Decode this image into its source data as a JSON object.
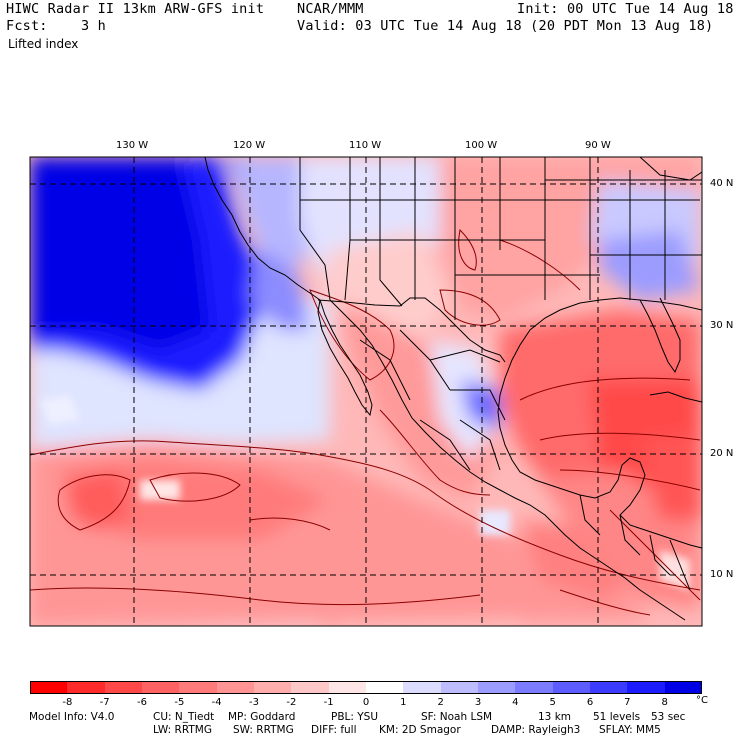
{
  "header": {
    "left_line1": "HIWC Radar II 13km ARW-GFS init",
    "center_line1": "NCAR/MMM",
    "right_line1": "Init: 00 UTC Tue 14 Aug 18",
    "left_line2": "Fcst:    3 h",
    "right_line2": "Valid: 03 UTC Tue 14 Aug 18 (20 PDT Mon 13 Aug 18)",
    "field_name": "Lifted index"
  },
  "map": {
    "longitude_labels": [
      "130 W",
      "120 W",
      "110 W",
      "100 W",
      "90 W"
    ],
    "latitude_labels": [
      "40 N",
      "30 N",
      "20 N",
      "10 N"
    ]
  },
  "colorbar": {
    "tick_labels": [
      "-8",
      "-7",
      "-6",
      "-5",
      "-4",
      "-3",
      "-2",
      "-1",
      "0",
      "1",
      "2",
      "3",
      "4",
      "5",
      "6",
      "7",
      "8"
    ],
    "unit": "°C",
    "colors": [
      "#ff0000",
      "#ff2a2a",
      "#ff4848",
      "#ff6262",
      "#ff7b7b",
      "#ff9494",
      "#ffadad",
      "#ffc8c8",
      "#ffe6e6",
      "#ffffff",
      "#dcdcff",
      "#bcbcff",
      "#9c9cff",
      "#7c7cff",
      "#5c5cff",
      "#3c3cff",
      "#1c1cff",
      "#0000e6"
    ]
  },
  "footer": {
    "line1_model": "Model Info: V4.0",
    "line1_cu": "CU: N_Tiedt",
    "line1_mp": "MP: Goddard",
    "line1_pbl": "PBL: YSU",
    "line1_sf": "SF: Noah LSM",
    "line1_res": "13 km",
    "line1_levels": "51 levels",
    "line1_dt": "53 sec",
    "line2_lw": "LW: RRTMG",
    "line2_sw": "SW: RRTMG",
    "line2_diff": "DIFF: full",
    "line2_km": "KM: 2D Smagor",
    "line2_damp": "DAMP: Rayleigh3",
    "line2_sflay": "SFLAY: MM5"
  }
}
